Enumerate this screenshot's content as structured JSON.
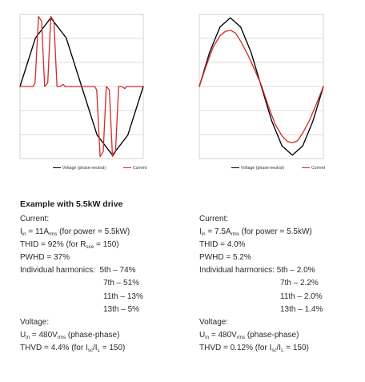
{
  "chart_data": [
    {
      "type": "line",
      "ylim": [
        -1.05,
        1.05
      ],
      "grid": true,
      "legend_placement": "bottom",
      "legend": [
        "Voltage (phase-neutral)",
        "Current"
      ],
      "series": [
        {
          "name": "Voltage (phase-neutral)",
          "color": "#000000",
          "x": [
            0,
            45,
            90,
            135,
            180,
            225,
            270,
            315,
            360
          ],
          "y": [
            0,
            0.707,
            1.0,
            0.707,
            0,
            -0.707,
            -1.0,
            -0.707,
            0
          ]
        },
        {
          "name": "Current",
          "color": "#d42a2a",
          "x": [
            0,
            38,
            44,
            54,
            63,
            72,
            81,
            90,
            99,
            108,
            117,
            126,
            132,
            142,
            180,
            218,
            224,
            234,
            243,
            252,
            261,
            270,
            279,
            288,
            297,
            306,
            312,
            322,
            360
          ],
          "y": [
            0,
            0,
            0.05,
            1.02,
            0.95,
            0,
            0.05,
            1.02,
            0.95,
            0,
            0,
            0.03,
            0,
            0,
            0,
            0,
            -0.05,
            -1.02,
            -0.95,
            0,
            -0.05,
            -1.02,
            -0.95,
            0,
            0,
            -0.03,
            0,
            0,
            0
          ]
        }
      ]
    },
    {
      "type": "line",
      "ylim": [
        -1.05,
        1.05
      ],
      "grid": true,
      "legend_placement": "bottom",
      "legend": [
        "Voltage (phase-neutral)",
        "Current"
      ],
      "series": [
        {
          "name": "Voltage (phase-neutral)",
          "color": "#000000",
          "x": [
            0,
            30,
            60,
            90,
            120,
            150,
            180,
            210,
            240,
            270,
            300,
            330,
            360
          ],
          "y": [
            0,
            0.5,
            0.866,
            1.0,
            0.866,
            0.5,
            0,
            -0.5,
            -0.866,
            -1.0,
            -0.866,
            -0.5,
            0
          ]
        },
        {
          "name": "Current",
          "color": "#d42a2a",
          "x": [
            0,
            20,
            40,
            60,
            75,
            90,
            105,
            120,
            140,
            160,
            180,
            200,
            220,
            240,
            255,
            270,
            285,
            300,
            320,
            340,
            360
          ],
          "y": [
            0,
            0.3,
            0.57,
            0.74,
            0.8,
            0.82,
            0.78,
            0.66,
            0.47,
            0.25,
            0.02,
            -0.28,
            -0.55,
            -0.72,
            -0.8,
            -0.82,
            -0.79,
            -0.68,
            -0.49,
            -0.25,
            0
          ]
        }
      ]
    }
  ],
  "heading": "Example with 5.5kW drive",
  "left": {
    "current_label": "Current:",
    "i_sym": "I",
    "i_sub": "in",
    "i_val": " = 11A",
    "i_unit_sub": "rms",
    "i_tail": " (for power = 5.5kW)",
    "thid_pre": "THID = 92% (for R",
    "thid_sub": "sce",
    "thid_post": " = 150)",
    "pwhd": "PWHD = 37%",
    "harmonics_label": "Individual harmonics:",
    "h5": "5th – 74%",
    "h7": "7th – 51%",
    "h11": "11th – 13%",
    "h13": "13th – 5%",
    "voltage_label": "Voltage:",
    "u_sym": "U",
    "u_sub": "in",
    "u_val": " = 480V",
    "u_unit_sub": "rms",
    "u_tail": " (phase-phase)",
    "thvd": "THVD = 4.4% (for I",
    "thvd_sub1": "sc",
    "thvd_mid": "/I",
    "thvd_sub2": "L",
    "thvd_tail": " = 150)"
  },
  "right": {
    "current_label": "Current:",
    "i_sym": "I",
    "i_sub": "in",
    "i_val": " = 7.5A",
    "i_unit_sub": "rms",
    "i_tail": " (for power = 5.5kW)",
    "thid": "THID = 4.0%",
    "pwhd": "PWHD = 5.2%",
    "harmonics_label": "Individual harmonics:",
    "h5": "5th – 2.0%",
    "h7": "7th – 2.2%",
    "h11": "11th – 2.0%",
    "h13": "13th – 1.4%",
    "voltage_label": "Voltage:",
    "u_sym": "U",
    "u_sub": "in",
    "u_val": " = 480V",
    "u_unit_sub": "rms",
    "u_tail": " (phase-phase)",
    "thvd": "THVD = 0.12% (for I",
    "thvd_sub1": "sc",
    "thvd_mid": "/I",
    "thvd_sub2": "L",
    "thvd_tail": " = 150)"
  }
}
